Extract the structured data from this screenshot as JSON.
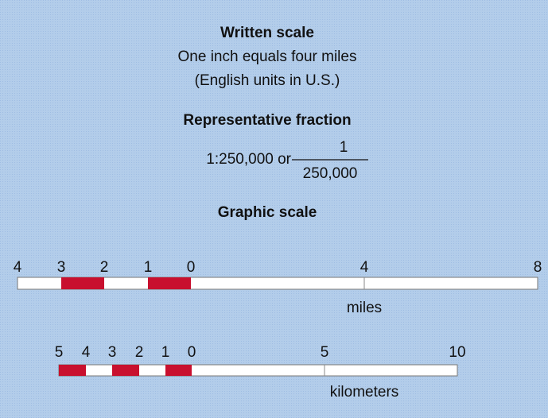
{
  "written_scale": {
    "title": "Written scale",
    "line1": "One inch equals four miles",
    "line2": "(English units in U.S.)"
  },
  "representative_fraction": {
    "title": "Representative fraction",
    "ratio": "1:250,000 or",
    "numerator": "1",
    "denominator": "250,000"
  },
  "graphic_scale": {
    "title": "Graphic scale",
    "miles": {
      "labels": [
        "4",
        "3",
        "2",
        "1",
        "0",
        "4",
        "8"
      ],
      "unit": "miles"
    },
    "kilometers": {
      "labels": [
        "5",
        "4",
        "3",
        "2",
        "1",
        "0",
        "5",
        "10"
      ],
      "unit": "kilometers"
    }
  }
}
